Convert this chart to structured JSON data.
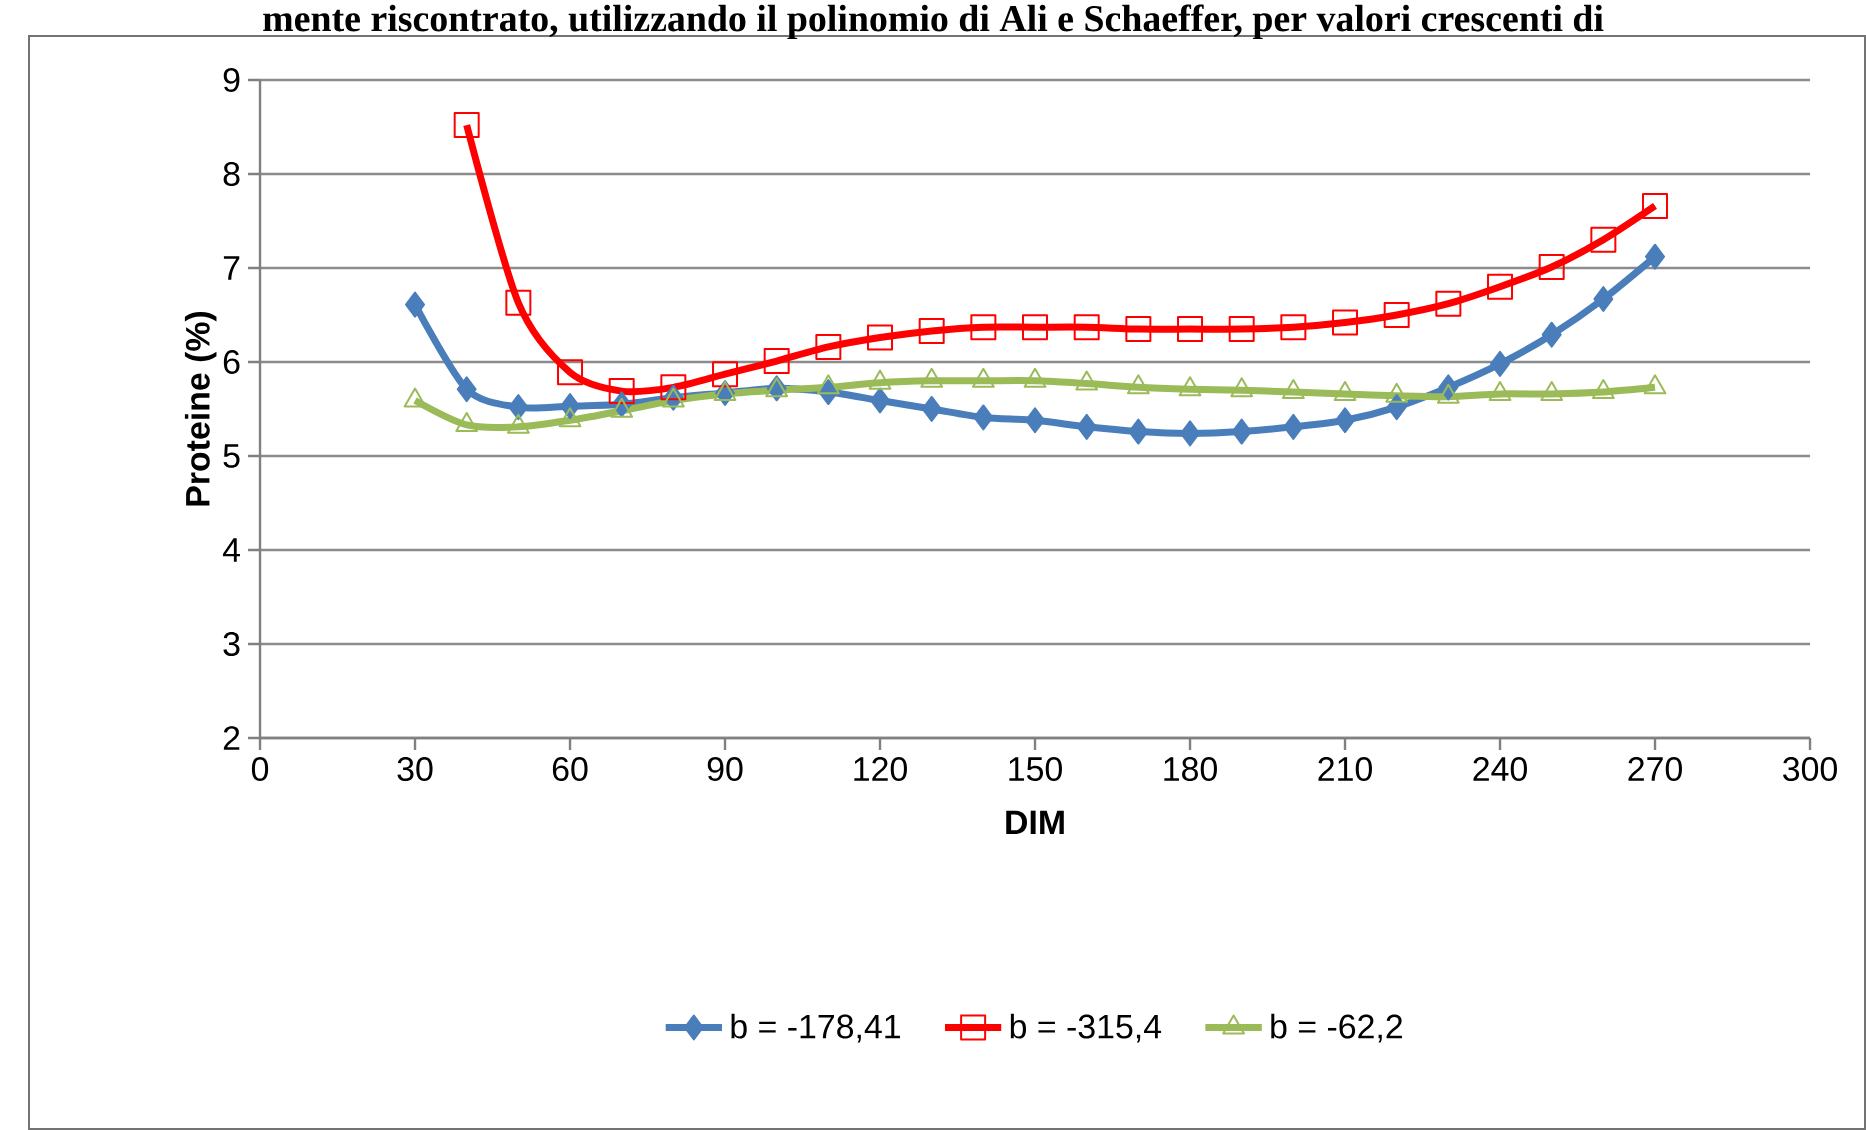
{
  "chart_data": {
    "type": "line",
    "title": "mente riscontrato, utilizzando il polinomio di Ali e Schaeffer, per valori crescenti di",
    "xlabel": "DIM",
    "ylabel": "Proteine (%)",
    "x": [
      30,
      40,
      50,
      60,
      70,
      80,
      90,
      100,
      110,
      120,
      130,
      140,
      150,
      160,
      170,
      180,
      190,
      200,
      210,
      220,
      230,
      240,
      250,
      260,
      270
    ],
    "series": [
      {
        "name": "b = -178,41",
        "color": "#4a7ebb",
        "marker": "diamond",
        "values": [
          6.61,
          5.71,
          5.52,
          5.53,
          5.55,
          5.62,
          5.67,
          5.72,
          5.68,
          5.59,
          5.5,
          5.41,
          5.38,
          5.31,
          5.26,
          5.24,
          5.26,
          5.31,
          5.38,
          5.52,
          5.73,
          5.98,
          6.29,
          6.67,
          7.12
        ]
      },
      {
        "name": "b = -315,4",
        "color": "#ff0000",
        "marker": "square",
        "values": [
          null,
          8.52,
          6.63,
          5.89,
          5.69,
          5.73,
          5.87,
          6.01,
          6.16,
          6.26,
          6.33,
          6.37,
          6.37,
          6.37,
          6.35,
          6.35,
          6.35,
          6.37,
          6.42,
          6.5,
          6.62,
          6.8,
          7.01,
          7.3,
          7.66
        ]
      },
      {
        "name": "b = -62,2",
        "color": "#9bbb59",
        "marker": "triangle",
        "values": [
          5.59,
          5.33,
          5.31,
          5.38,
          5.48,
          5.59,
          5.66,
          5.7,
          5.73,
          5.78,
          5.8,
          5.8,
          5.8,
          5.77,
          5.73,
          5.71,
          5.7,
          5.68,
          5.66,
          5.64,
          5.63,
          5.66,
          5.66,
          5.68,
          5.73
        ]
      }
    ],
    "xlim": [
      0,
      300
    ],
    "xticks": [
      0,
      30,
      60,
      90,
      120,
      150,
      180,
      210,
      240,
      270,
      300
    ],
    "ylim": [
      2,
      9
    ],
    "yticks": [
      2,
      3,
      4,
      5,
      6,
      7,
      8,
      9
    ],
    "grid": "y",
    "legend": "bottom"
  }
}
